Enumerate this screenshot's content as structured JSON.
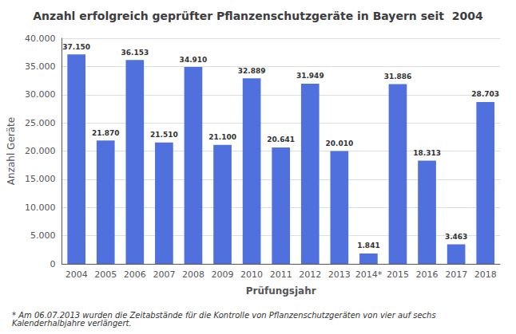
{
  "chart_data": {
    "type": "bar",
    "title": "Anzahl erfolgreich geprüfter Pflanzenschutzgeräte in Bayern seit  2004",
    "xlabel": "Prüfungsjahr",
    "ylabel": "Anzahl Geräte",
    "annotations": [
      "* Am 06.07.2013 wurden die Zeitabstände für die Kontrolle von Pflanzenschutzgeräten von vier auf sechs Kalenderhalbjahre verlängert."
    ],
    "categories": [
      "2004",
      "2005",
      "2006",
      "2007",
      "2008",
      "2009",
      "2010",
      "2011",
      "2012",
      "2013",
      "2014*",
      "2015",
      "2016",
      "2017",
      "2018"
    ],
    "values": [
      37150,
      21870,
      36153,
      21510,
      34910,
      21100,
      32889,
      20641,
      31949,
      20010,
      1841,
      31886,
      18313,
      3463,
      28703
    ],
    "value_labels": [
      "37.150",
      "21.870",
      "36.153",
      "21.510",
      "34.910",
      "21.100",
      "32.889",
      "20.641",
      "31.949",
      "20.010",
      "1.841",
      "31.886",
      "18.313",
      "3.463",
      "28.703"
    ],
    "data_labels": true,
    "ylim": [
      0,
      40000
    ],
    "yticks": [
      0,
      {
        "value": 5000,
        "label": "5.000"
      },
      {
        "value": 10000,
        "label": "10.000"
      },
      {
        "value": 15000,
        "label": "15.000"
      },
      {
        "value": 20000,
        "label": "20.000"
      },
      {
        "value": 25000,
        "label": "25.000"
      },
      {
        "value": 30000,
        "label": "30.000"
      },
      {
        "value": 35000,
        "label": "35.000"
      },
      {
        "value": 40000,
        "label": "40.000"
      }
    ],
    "grid": true
  }
}
